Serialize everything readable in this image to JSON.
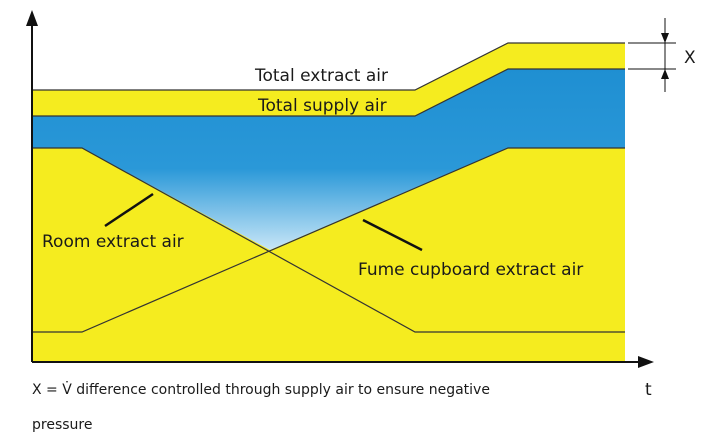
{
  "labels": {
    "total_extract": "Total extract air",
    "total_supply": "Total supply air",
    "room_extract": "Room extract air",
    "fume_extract": "Fume cupboard extract air",
    "x_marker": "X",
    "time_axis": "t"
  },
  "caption": [
    "X  = V̇ difference controlled through supply air to ensure negative",
    "pressure"
  ]
}
